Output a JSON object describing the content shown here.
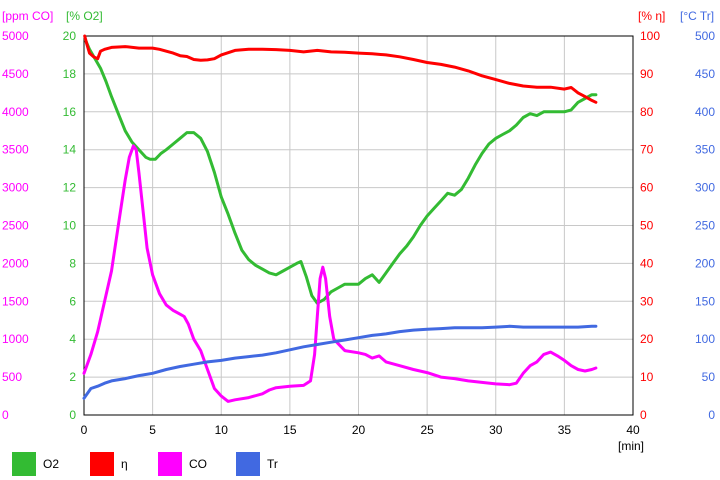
{
  "chart_data": {
    "type": "line",
    "xlabel": "[min]",
    "xlim": [
      0,
      40
    ],
    "x_ticks": [
      "0",
      "5",
      "10",
      "15",
      "20",
      "25",
      "30",
      "35",
      "40"
    ],
    "grid": true,
    "legend_position": "bottom",
    "axes": [
      {
        "id": "co",
        "unit": "[ppm CO]",
        "side": "left-outer",
        "color": "#ff00ff",
        "ylim": [
          0,
          5000
        ],
        "ticks": [
          "0",
          "500",
          "1000",
          "1500",
          "2000",
          "2500",
          "3000",
          "3500",
          "4000",
          "4500",
          "5000"
        ]
      },
      {
        "id": "o2",
        "unit": "[% O2]",
        "side": "left-inner",
        "color": "#33bb33",
        "ylim": [
          0,
          20
        ],
        "ticks": [
          "0",
          "2",
          "4",
          "6",
          "8",
          "10",
          "12",
          "14",
          "16",
          "18",
          "20"
        ]
      },
      {
        "id": "eta",
        "unit": "[% η]",
        "side": "right-inner",
        "color": "#ff0000",
        "ylim": [
          0,
          100
        ],
        "ticks": [
          "0",
          "10",
          "20",
          "30",
          "40",
          "50",
          "60",
          "70",
          "80",
          "90",
          "100"
        ]
      },
      {
        "id": "tr",
        "unit": "[°C Tr]",
        "side": "right-outer",
        "color": "#4169e1",
        "ylim": [
          0,
          500
        ],
        "ticks": [
          "0",
          "50",
          "100",
          "150",
          "200",
          "250",
          "300",
          "350",
          "400",
          "450",
          "500"
        ]
      }
    ],
    "series": [
      {
        "name": "O2",
        "axis": "o2",
        "color": "#33bb33",
        "points": [
          [
            0.1,
            19.8
          ],
          [
            0.4,
            19.3
          ],
          [
            0.8,
            18.8
          ],
          [
            1.2,
            18.3
          ],
          [
            1.6,
            17.6
          ],
          [
            2,
            16.8
          ],
          [
            2.5,
            15.9
          ],
          [
            3,
            15
          ],
          [
            3.5,
            14.4
          ],
          [
            4,
            14
          ],
          [
            4.5,
            13.6
          ],
          [
            4.8,
            13.5
          ],
          [
            5.2,
            13.5
          ],
          [
            5.6,
            13.8
          ],
          [
            6,
            14
          ],
          [
            6.5,
            14.3
          ],
          [
            7,
            14.6
          ],
          [
            7.5,
            14.9
          ],
          [
            8,
            14.9
          ],
          [
            8.5,
            14.6
          ],
          [
            9,
            13.9
          ],
          [
            9.5,
            12.8
          ],
          [
            10,
            11.5
          ],
          [
            10.5,
            10.6
          ],
          [
            11,
            9.6
          ],
          [
            11.5,
            8.7
          ],
          [
            12,
            8.2
          ],
          [
            12.5,
            7.9
          ],
          [
            13,
            7.7
          ],
          [
            13.5,
            7.5
          ],
          [
            14,
            7.4
          ],
          [
            14.5,
            7.6
          ],
          [
            15,
            7.8
          ],
          [
            15.5,
            8
          ],
          [
            15.8,
            8.1
          ],
          [
            16.2,
            7.3
          ],
          [
            16.6,
            6.3
          ],
          [
            17,
            5.9
          ],
          [
            17.5,
            6.1
          ],
          [
            18,
            6.5
          ],
          [
            18.5,
            6.7
          ],
          [
            19,
            6.9
          ],
          [
            19.5,
            6.9
          ],
          [
            20,
            6.9
          ],
          [
            20.5,
            7.2
          ],
          [
            21,
            7.4
          ],
          [
            21.5,
            7
          ],
          [
            22,
            7.5
          ],
          [
            22.5,
            8
          ],
          [
            23,
            8.5
          ],
          [
            23.5,
            8.9
          ],
          [
            24,
            9.4
          ],
          [
            24.5,
            10
          ],
          [
            25,
            10.5
          ],
          [
            25.5,
            10.9
          ],
          [
            26,
            11.3
          ],
          [
            26.5,
            11.7
          ],
          [
            27,
            11.6
          ],
          [
            27.5,
            11.9
          ],
          [
            28,
            12.5
          ],
          [
            28.5,
            13.2
          ],
          [
            29,
            13.8
          ],
          [
            29.5,
            14.3
          ],
          [
            30,
            14.6
          ],
          [
            30.5,
            14.8
          ],
          [
            31,
            15
          ],
          [
            31.5,
            15.3
          ],
          [
            32,
            15.7
          ],
          [
            32.5,
            15.9
          ],
          [
            33,
            15.8
          ],
          [
            33.5,
            16
          ],
          [
            34,
            16
          ],
          [
            34.5,
            16
          ],
          [
            35,
            16
          ],
          [
            35.5,
            16.1
          ],
          [
            36,
            16.5
          ],
          [
            36.5,
            16.7
          ],
          [
            37,
            16.9
          ],
          [
            37.3,
            16.9
          ]
        ]
      },
      {
        "name": "η",
        "axis": "eta",
        "color": "#ff0000",
        "points": [
          [
            0.05,
            100
          ],
          [
            0.2,
            98
          ],
          [
            0.4,
            95.5
          ],
          [
            0.7,
            94.5
          ],
          [
            1,
            94
          ],
          [
            1.2,
            96
          ],
          [
            1.5,
            96.5
          ],
          [
            2,
            97
          ],
          [
            3,
            97.2
          ],
          [
            4,
            96.8
          ],
          [
            5,
            96.8
          ],
          [
            5.5,
            96.5
          ],
          [
            6,
            96
          ],
          [
            6.5,
            95.5
          ],
          [
            7,
            94.8
          ],
          [
            7.5,
            94.6
          ],
          [
            8,
            93.8
          ],
          [
            8.5,
            93.6
          ],
          [
            9,
            93.7
          ],
          [
            9.5,
            94
          ],
          [
            10,
            95
          ],
          [
            11,
            96.2
          ],
          [
            12,
            96.5
          ],
          [
            13,
            96.5
          ],
          [
            14,
            96.4
          ],
          [
            15,
            96.2
          ],
          [
            16,
            95.8
          ],
          [
            17,
            96.2
          ],
          [
            18,
            95.8
          ],
          [
            19,
            95.7
          ],
          [
            20,
            95.5
          ],
          [
            21,
            95.3
          ],
          [
            22,
            95
          ],
          [
            23,
            94.5
          ],
          [
            24,
            93.8
          ],
          [
            25,
            93
          ],
          [
            26,
            92.5
          ],
          [
            27,
            91.8
          ],
          [
            28,
            90.8
          ],
          [
            29,
            89.5
          ],
          [
            30,
            88.5
          ],
          [
            31,
            87.5
          ],
          [
            32,
            86.8
          ],
          [
            33,
            86.5
          ],
          [
            34,
            86.5
          ],
          [
            35,
            86
          ],
          [
            35.5,
            86.4
          ],
          [
            36,
            85
          ],
          [
            36.5,
            84
          ],
          [
            37,
            83
          ],
          [
            37.3,
            82.5
          ]
        ]
      },
      {
        "name": "CO",
        "axis": "co",
        "color": "#ff00ff",
        "points": [
          [
            0,
            550
          ],
          [
            0.5,
            800
          ],
          [
            1,
            1100
          ],
          [
            1.5,
            1500
          ],
          [
            2,
            1900
          ],
          [
            2.5,
            2500
          ],
          [
            3,
            3100
          ],
          [
            3.3,
            3400
          ],
          [
            3.6,
            3550
          ],
          [
            3.8,
            3500
          ],
          [
            4,
            3200
          ],
          [
            4.3,
            2700
          ],
          [
            4.6,
            2200
          ],
          [
            5,
            1850
          ],
          [
            5.5,
            1600
          ],
          [
            6,
            1450
          ],
          [
            6.5,
            1380
          ],
          [
            7,
            1330
          ],
          [
            7.3,
            1300
          ],
          [
            7.6,
            1200
          ],
          [
            8,
            1000
          ],
          [
            8.5,
            850
          ],
          [
            9,
            600
          ],
          [
            9.5,
            350
          ],
          [
            10,
            250
          ],
          [
            10.5,
            180
          ],
          [
            11,
            200
          ],
          [
            12,
            230
          ],
          [
            13,
            280
          ],
          [
            13.5,
            330
          ],
          [
            14,
            360
          ],
          [
            15,
            380
          ],
          [
            16,
            390
          ],
          [
            16.5,
            450
          ],
          [
            16.8,
            800
          ],
          [
            17,
            1300
          ],
          [
            17.2,
            1800
          ],
          [
            17.4,
            1950
          ],
          [
            17.6,
            1800
          ],
          [
            17.9,
            1300
          ],
          [
            18.2,
            1000
          ],
          [
            19,
            850
          ],
          [
            20,
            820
          ],
          [
            20.5,
            800
          ],
          [
            21,
            750
          ],
          [
            21.5,
            780
          ],
          [
            22,
            700
          ],
          [
            23,
            650
          ],
          [
            24,
            600
          ],
          [
            25,
            560
          ],
          [
            26,
            500
          ],
          [
            27,
            480
          ],
          [
            28,
            450
          ],
          [
            29,
            430
          ],
          [
            30,
            410
          ],
          [
            31,
            400
          ],
          [
            31.5,
            420
          ],
          [
            32,
            550
          ],
          [
            32.5,
            650
          ],
          [
            33,
            700
          ],
          [
            33.5,
            800
          ],
          [
            34,
            830
          ],
          [
            34.5,
            780
          ],
          [
            35,
            720
          ],
          [
            35.5,
            650
          ],
          [
            36,
            600
          ],
          [
            36.5,
            580
          ],
          [
            37,
            600
          ],
          [
            37.3,
            620
          ]
        ]
      },
      {
        "name": "Tr",
        "axis": "tr",
        "color": "#4169e1",
        "points": [
          [
            0,
            22
          ],
          [
            0.5,
            35
          ],
          [
            1,
            38
          ],
          [
            1.5,
            42
          ],
          [
            2,
            45
          ],
          [
            3,
            48
          ],
          [
            4,
            52
          ],
          [
            5,
            55
          ],
          [
            6,
            60
          ],
          [
            7,
            64
          ],
          [
            8,
            67
          ],
          [
            9,
            70
          ],
          [
            10,
            72
          ],
          [
            11,
            75
          ],
          [
            12,
            77
          ],
          [
            13,
            79
          ],
          [
            14,
            82
          ],
          [
            15,
            86
          ],
          [
            16,
            90
          ],
          [
            17,
            93
          ],
          [
            18,
            96
          ],
          [
            19,
            99
          ],
          [
            20,
            102
          ],
          [
            21,
            105
          ],
          [
            22,
            107
          ],
          [
            23,
            110
          ],
          [
            24,
            112
          ],
          [
            25,
            113
          ],
          [
            26,
            114
          ],
          [
            27,
            115
          ],
          [
            28,
            115
          ],
          [
            29,
            115
          ],
          [
            30,
            116
          ],
          [
            31,
            117
          ],
          [
            32,
            116
          ],
          [
            33,
            116
          ],
          [
            34,
            116
          ],
          [
            35,
            116
          ],
          [
            36,
            116
          ],
          [
            37,
            117
          ],
          [
            37.3,
            117
          ]
        ]
      }
    ]
  }
}
